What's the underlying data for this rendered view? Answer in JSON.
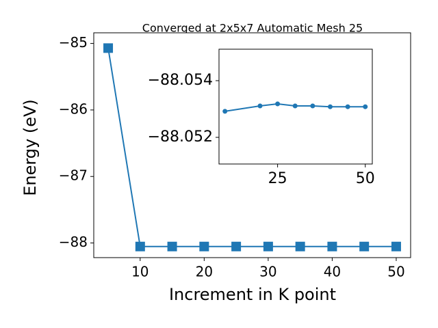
{
  "chart_data": [
    {
      "type": "line",
      "title": "Converged at 2x5x7 Automatic Mesh 25",
      "x_label": "Increment in K point",
      "y_label": "Energy (eV)",
      "x": [
        5,
        10,
        15,
        20,
        25,
        30,
        35,
        40,
        45,
        50
      ],
      "series": [
        {
          "color": "#1f77b4",
          "marker": "square",
          "values": [
            -85.07,
            -88.053,
            -88.053,
            -88.053,
            -88.053,
            -88.053,
            -88.053,
            -88.053,
            -88.053,
            -88.053
          ]
        }
      ],
      "xlim": [
        2.75,
        52.25
      ],
      "xticks": [
        10,
        20,
        30,
        40,
        50
      ],
      "ylim": [
        -88.22,
        -84.84
      ],
      "yticks": [
        {
          "value": -88,
          "label": "−88"
        },
        {
          "value": -87,
          "label": "−87"
        },
        {
          "value": -86,
          "label": "−86"
        },
        {
          "value": -85,
          "label": "−85"
        }
      ]
    },
    {
      "type": "line",
      "x": [
        10,
        20,
        25,
        30,
        35,
        40,
        45,
        50
      ],
      "series": [
        {
          "color": "#1f77b4",
          "marker": "circle",
          "values": [
            -88.05292,
            -88.05311,
            -88.05318,
            -88.05311,
            -88.05311,
            -88.05308,
            -88.05308,
            -88.05308
          ]
        }
      ],
      "xlim": [
        8.3,
        52
      ],
      "xticks": [
        25,
        50
      ],
      "ylim": [
        -88.05106,
        -88.05511
      ],
      "yticks": [
        {
          "value": -88.054,
          "label": "−88.054"
        },
        {
          "value": -88.052,
          "label": "−88.052"
        }
      ]
    }
  ]
}
